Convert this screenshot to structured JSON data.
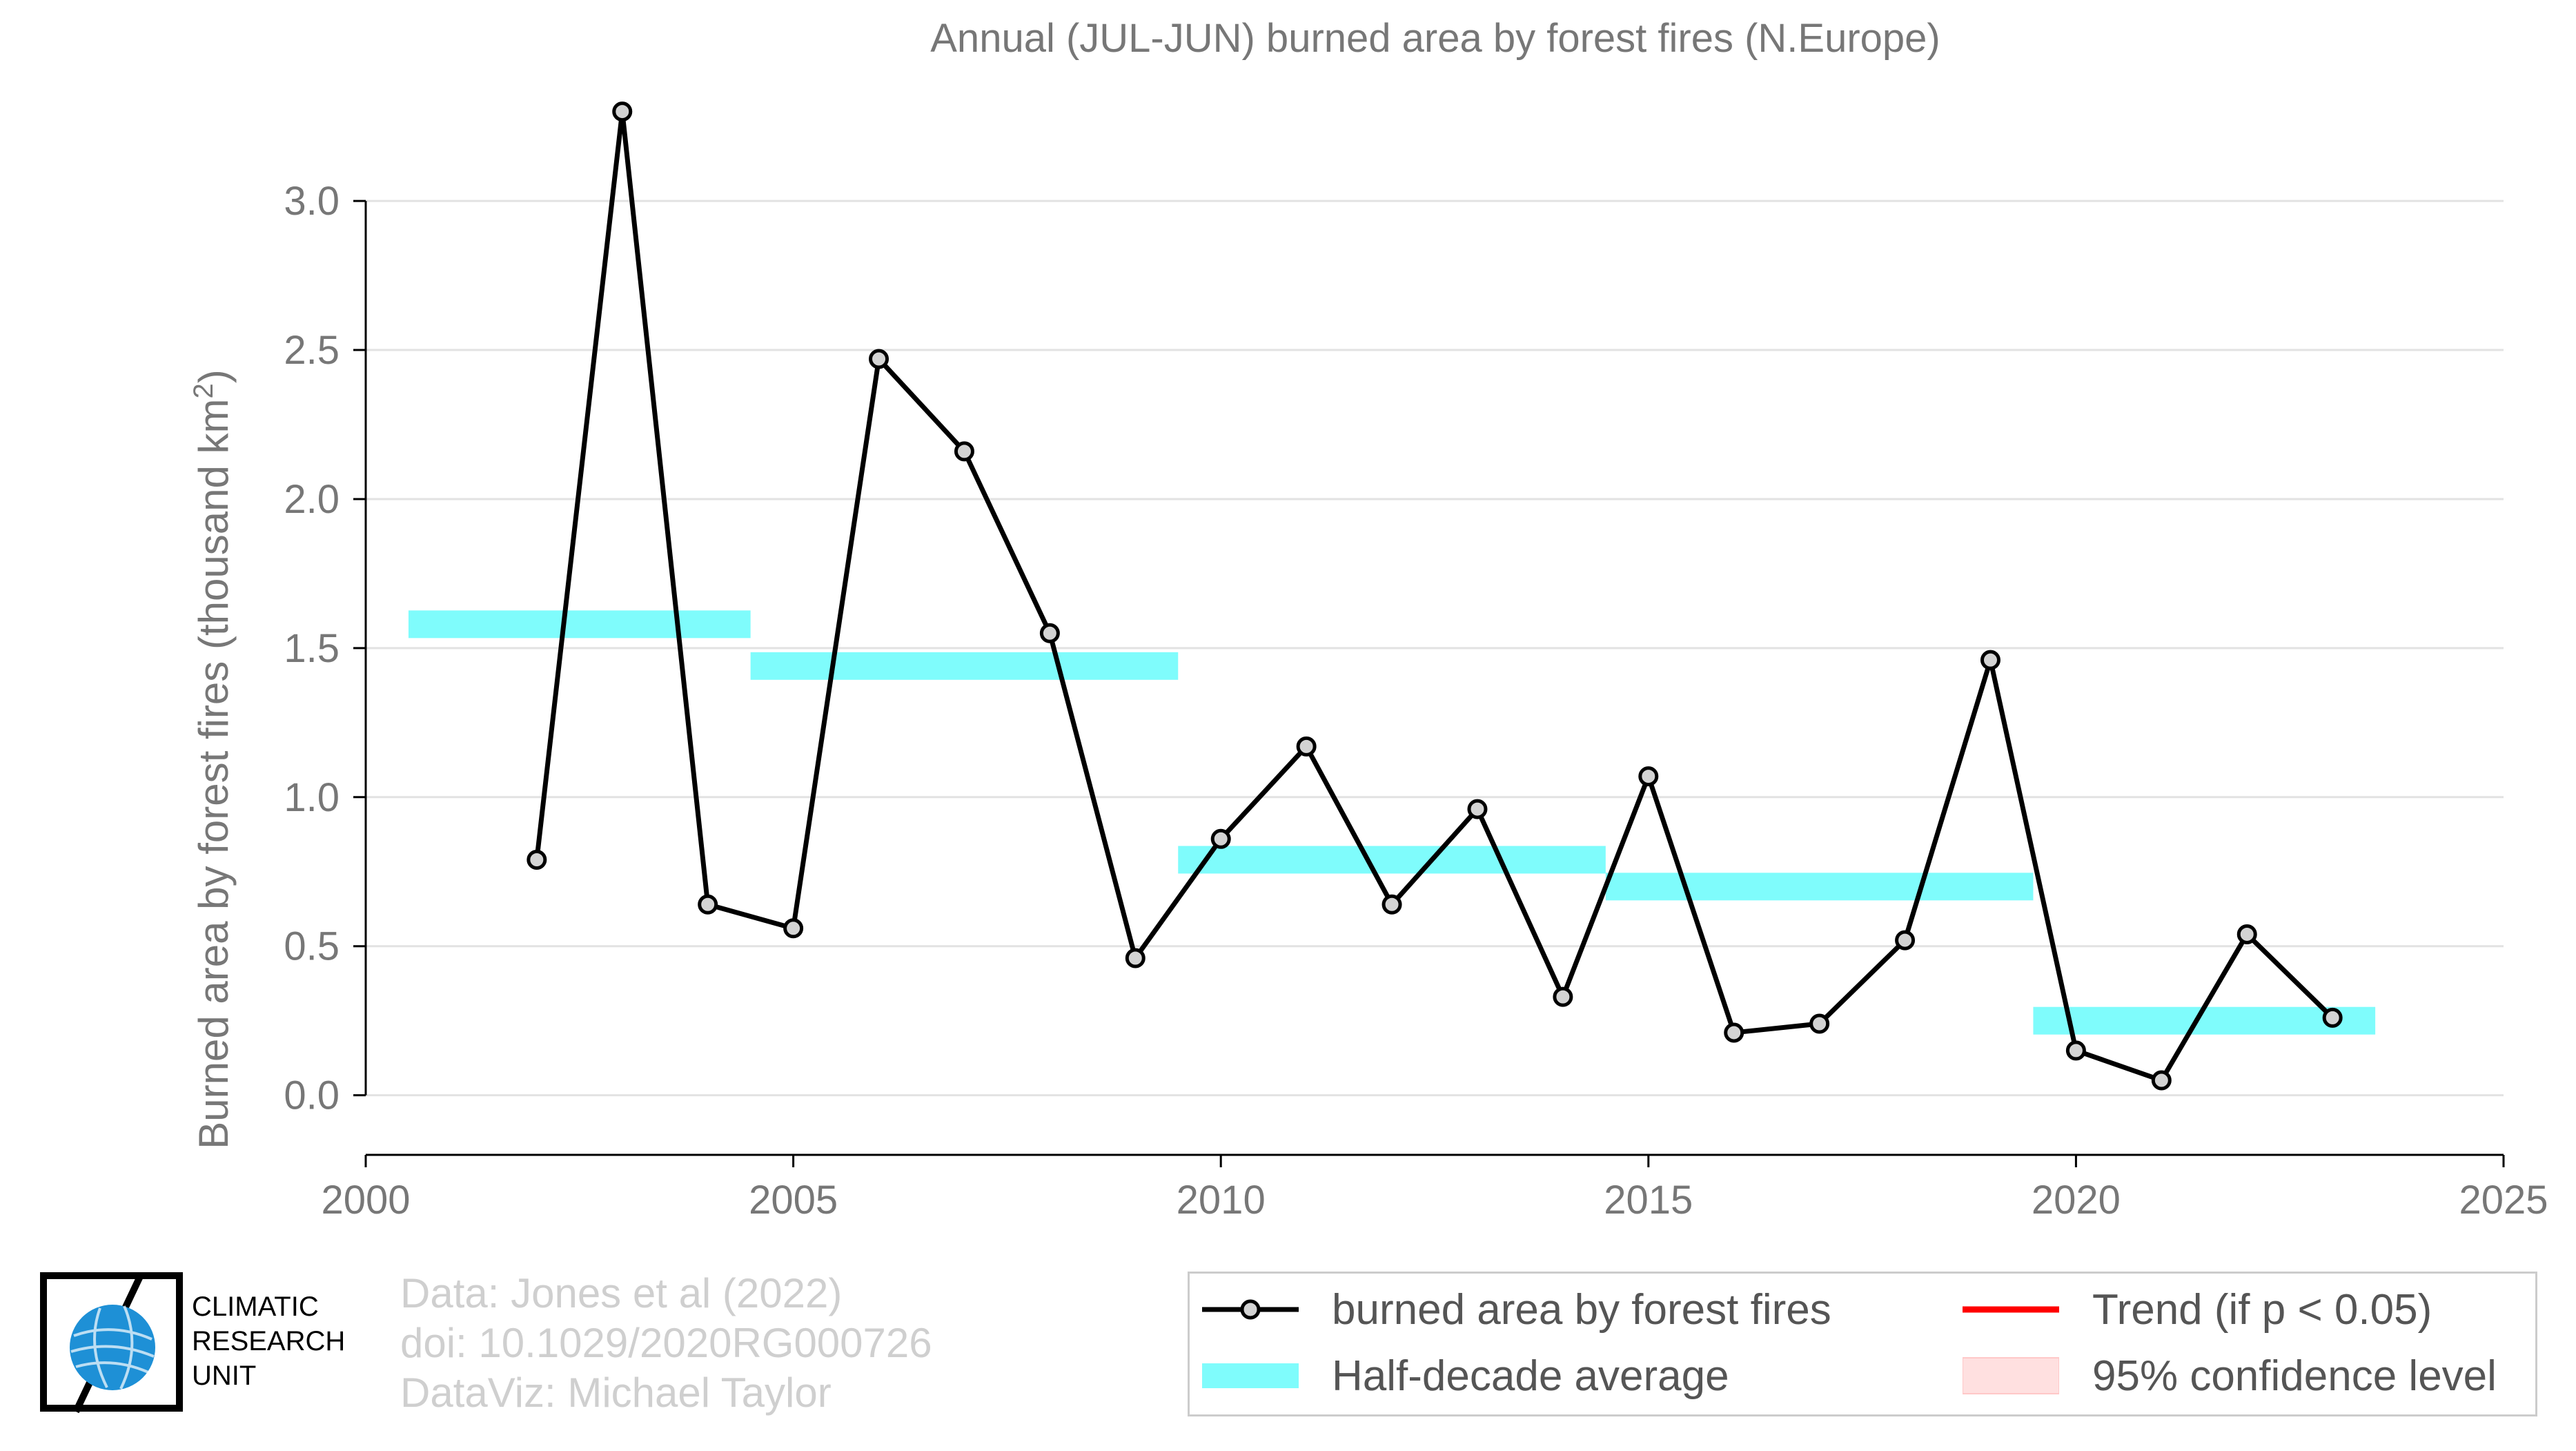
{
  "chart_data": {
    "type": "line",
    "title": "Annual (JUL-JUN) burned area by forest fires (N.Europe)",
    "ylabel": "Burned area by forest fires (thousand km",
    "ylabel_superscript": "2",
    "ylabel_close": ")",
    "xlabel": "",
    "xlim": [
      2000,
      2025
    ],
    "ylim": [
      -0.2,
      3.35
    ],
    "xticks": [
      2000,
      2005,
      2010,
      2015,
      2020,
      2025
    ],
    "yticks": [
      0.0,
      0.5,
      1.0,
      1.5,
      2.0,
      2.5,
      3.0
    ],
    "ytick_labels": [
      "0.0",
      "0.5",
      "1.0",
      "1.5",
      "2.0",
      "2.5",
      "3.0"
    ],
    "grid": "horizontal",
    "series": [
      {
        "name": "burned area by forest fires",
        "color": "#000000",
        "marker_fill": "#d3d3d3",
        "x": [
          2002,
          2003,
          2004,
          2005,
          2006,
          2007,
          2008,
          2009,
          2010,
          2011,
          2012,
          2013,
          2014,
          2015,
          2016,
          2017,
          2018,
          2019,
          2020,
          2021,
          2022,
          2023
        ],
        "values": [
          0.79,
          3.3,
          0.64,
          0.56,
          2.47,
          2.16,
          1.55,
          0.46,
          0.86,
          1.17,
          0.64,
          0.96,
          0.33,
          1.07,
          0.21,
          0.24,
          0.52,
          1.46,
          0.15,
          0.05,
          0.54,
          0.26
        ]
      }
    ],
    "half_decade_average": {
      "name": "Half-decade average",
      "color": "#7ffcfc",
      "segments": [
        {
          "x_start": 2000.5,
          "x_end": 2004.5,
          "value": 1.58
        },
        {
          "x_start": 2004.5,
          "x_end": 2009.5,
          "value": 1.44
        },
        {
          "x_start": 2009.5,
          "x_end": 2014.5,
          "value": 0.79
        },
        {
          "x_start": 2014.5,
          "x_end": 2019.5,
          "value": 0.7
        },
        {
          "x_start": 2019.5,
          "x_end": 2023.5,
          "value": 0.25
        }
      ]
    }
  },
  "legend": {
    "series_label": "burned area by forest fires",
    "average_label": "Half-decade average",
    "trend_label": "Trend (if p < 0.05)",
    "confidence_label": "95% confidence level",
    "trend_color": "#ff0000",
    "confidence_color": "#ffe0e0"
  },
  "credits": {
    "line1": "Data: Jones et al (2022)",
    "line2": "doi: 10.1029/2020RG000726",
    "line3": "DataViz: Michael Taylor"
  },
  "logo": {
    "line1": "CLIMATIC",
    "line2": "RESEARCH",
    "line3": "UNIT",
    "globe_color": "#1e90d6"
  }
}
